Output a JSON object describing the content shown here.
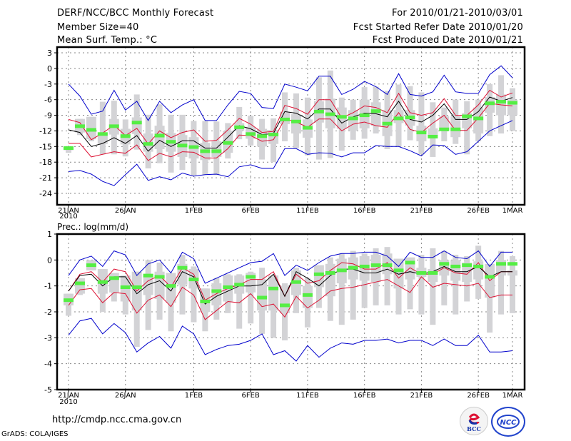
{
  "header": {
    "title": "DERF/NCC/BCC Monthly Forecast",
    "member_size": "Member Size=40",
    "variable": "Mean Surf. Temp.: °C",
    "period": "For 2010/01/21-2010/03/01",
    "started": "Fcst Started Refer Date 2010/01/20",
    "produced": "Fcst Produced Date 2010/01/21"
  },
  "footer": {
    "url": "http://cmdp.ncc.cma.gov.cn",
    "credit": "GrADS: COLA/IGES",
    "logo_left": "BCC",
    "logo_right": "NCC"
  },
  "colors": {
    "max_min": "#0000cc",
    "spread": "#dd1133",
    "mean": "#000000",
    "member_median": "#55ee44",
    "box": "#d3d3d6",
    "grid": "#888888"
  },
  "chart_data": [
    {
      "type": "line",
      "title": "Mean Surf. Temp.: °C",
      "xlabel": "",
      "ylabel": "°C",
      "ylim": [
        -26,
        4
      ],
      "yticks": [
        3,
        0,
        -3,
        -6,
        -9,
        -12,
        -15,
        -18,
        -21,
        -24
      ],
      "xtick_labels": [
        "21JAN",
        "26JAN",
        "1FEB",
        "6FEB",
        "11FEB",
        "16FEB",
        "21FEB",
        "26FEB",
        "1MAR"
      ],
      "xtick_days": [
        0,
        5,
        11,
        16,
        21,
        26,
        31,
        36,
        39
      ],
      "year_label": "2010",
      "grid": true,
      "series": [
        {
          "name": "max",
          "values": [
            -3,
            -5.3,
            -8.8,
            -8.2,
            -4.2,
            -8,
            -6.3,
            -10,
            -6.3,
            -8.5,
            -7,
            -6,
            -10,
            -10,
            -7,
            -4.4,
            -4.8,
            -7.5,
            -7.7,
            -3,
            -3.6,
            -4.3,
            -1.5,
            -1.5,
            -5,
            -4,
            -2.5,
            -3.5,
            -5,
            -1,
            -5,
            -5.3,
            -4.5,
            -1.3,
            -4.5,
            -4.8,
            -4.8,
            -1.2,
            0.5,
            -1.8
          ]
        },
        {
          "name": "upper",
          "values": [
            -9.8,
            -10.4,
            -13.7,
            -12.4,
            -10.9,
            -12.9,
            -11.5,
            -14.5,
            -12,
            -13.3,
            -12.3,
            -11.8,
            -14,
            -13.8,
            -11.8,
            -9.6,
            -10.7,
            -12.3,
            -12.1,
            -7.1,
            -7.7,
            -8.8,
            -6,
            -6,
            -9.5,
            -8.5,
            -7.2,
            -7.5,
            -8.5,
            -4.8,
            -8.5,
            -9,
            -8.5,
            -5.8,
            -9,
            -9,
            -7,
            -4.2,
            -5.5,
            -4.7
          ]
        },
        {
          "name": "mean",
          "values": [
            -11.8,
            -12.3,
            -15,
            -14.4,
            -13.3,
            -14.4,
            -12.9,
            -15.9,
            -13.8,
            -15,
            -13.9,
            -13.9,
            -15.3,
            -15.3,
            -13.2,
            -11,
            -11.6,
            -12.7,
            -12.5,
            -8.3,
            -8.6,
            -9.7,
            -7.8,
            -7.8,
            -10.5,
            -9.3,
            -8.6,
            -8.7,
            -9.3,
            -6.3,
            -9.8,
            -10.3,
            -9,
            -6.8,
            -9.8,
            -9.8,
            -8.3,
            -5.5,
            -6.3,
            -5.6
          ]
        },
        {
          "name": "lower",
          "values": [
            -14.4,
            -14.4,
            -17,
            -16.5,
            -16,
            -16.3,
            -14.7,
            -17.7,
            -16.3,
            -17,
            -16,
            -16.1,
            -17.2,
            -17.2,
            -15.4,
            -12.8,
            -12.9,
            -14,
            -13.7,
            -9.7,
            -10.3,
            -11.3,
            -9.7,
            -9.7,
            -12,
            -10.7,
            -10.3,
            -11,
            -11.3,
            -8.5,
            -11.7,
            -12.3,
            -10.5,
            -9,
            -11.9,
            -11.9,
            -9.5,
            -6.7,
            -7,
            -7.2
          ]
        },
        {
          "name": "min",
          "values": [
            -19.8,
            -19.6,
            -20.3,
            -21.7,
            -22.5,
            -20.4,
            -18.4,
            -21.5,
            -20.8,
            -21.4,
            -20.1,
            -20.7,
            -20.4,
            -20.3,
            -20.8,
            -18.9,
            -18.5,
            -19.2,
            -19.2,
            -15.4,
            -15.4,
            -16.5,
            -16.2,
            -16.3,
            -17,
            -16.2,
            -16.2,
            -14.8,
            -15,
            -15,
            -15.8,
            -16.8,
            -14.7,
            -14.8,
            -16.5,
            -16,
            -14,
            -12,
            -11,
            -10
          ]
        },
        {
          "name": "member_median",
          "values": [
            -15.3,
            -11.1,
            -11.8,
            -12.6,
            -11.1,
            -13,
            -10.4,
            -14.5,
            -12.9,
            -14.1,
            -14.8,
            -15.1,
            -15.9,
            -15.9,
            -14.3,
            -11.3,
            -12.6,
            -13,
            -12.7,
            -9.8,
            -10.2,
            -11.4,
            -8.3,
            -8.8,
            -9.3,
            -9.6,
            -9,
            -8.2,
            -10.6,
            -9.6,
            -9.4,
            -12.3,
            -13.1,
            -11.7,
            -11.7,
            -9.2,
            -9.6,
            -6.7,
            -6.4,
            -6.6
          ]
        },
        {
          "name": "box_q1",
          "values": [
            -15.7,
            -12.3,
            -13.6,
            -14.5,
            -12.7,
            -14.6,
            -12.6,
            -16,
            -15.5,
            -16,
            -17,
            -17.3,
            -17.6,
            -17,
            -16.2,
            -12,
            -13.5,
            -15,
            -14.5,
            -10.7,
            -12.5,
            -13.3,
            -10.4,
            -11.5,
            -11.6,
            -12,
            -11.5,
            -11,
            -13,
            -10.5,
            -11,
            -14,
            -13,
            -11.8,
            -13.2,
            -11.5,
            -12.5,
            -8.5,
            -9,
            -9
          ]
        },
        {
          "name": "box_q3",
          "values": [
            -15,
            -9.7,
            -9.3,
            -12.5,
            -9.7,
            -11.6,
            -9.4,
            -12.5,
            -11,
            -12.4,
            -12.8,
            -13.2,
            -14.3,
            -14,
            -12,
            -10.5,
            -11.2,
            -11.6,
            -11.8,
            -8.3,
            -8.8,
            -9.8,
            -6.3,
            -5.8,
            -7.5,
            -8,
            -6,
            -6.5,
            -8,
            -8,
            -8,
            -11,
            -11.5,
            -9.2,
            -9.2,
            -8.6,
            -7.5,
            -5.5,
            -5,
            -6
          ]
        },
        {
          "name": "box_min",
          "values": [
            -16.2,
            -12.8,
            -14,
            -16.5,
            -16.5,
            -16.9,
            -15.6,
            -19.2,
            -18.2,
            -20,
            -19.5,
            -20.5,
            -20.4,
            -20.5,
            -17.3,
            -13.6,
            -14.8,
            -17.5,
            -18,
            -14,
            -15.3,
            -16.7,
            -17.5,
            -17.2,
            -15.8,
            -13.7,
            -13.5,
            -12.5,
            -15.5,
            -15,
            -13.8,
            -16.5,
            -17,
            -14,
            -14.5,
            -16.5,
            -14,
            -13,
            -12.5,
            -12
          ]
        },
        {
          "name": "box_max",
          "values": [
            -15,
            -9.7,
            -9.3,
            -6.4,
            -6.2,
            -9.8,
            -5,
            -8.9,
            -6.9,
            -8.9,
            -8.9,
            -10.1,
            -10.1,
            -10.2,
            -10.5,
            -7.4,
            -9.1,
            -9.7,
            -9.6,
            -4.6,
            -4.8,
            -5.6,
            -1.7,
            -0.4,
            -5.6,
            -6,
            -3.6,
            -3.5,
            -4.3,
            -3.1,
            -3.4,
            -4.6,
            -6.5,
            -7.5,
            -6,
            -6.3,
            -6,
            -3,
            -1.3,
            -3.8
          ]
        }
      ]
    },
    {
      "type": "line",
      "title": "Prec.: log(mm/d)",
      "xlabel": "",
      "ylabel": "log(mm/d)",
      "ylim": [
        -5,
        1
      ],
      "yticks": [
        1,
        0,
        -1,
        -2,
        -3,
        -4,
        -5
      ],
      "xtick_labels": [
        "21JAN",
        "26JAN",
        "1FEB",
        "6FEB",
        "11FEB",
        "16FEB",
        "21FEB",
        "26FEB",
        "1MAR"
      ],
      "xtick_days": [
        0,
        5,
        11,
        16,
        21,
        26,
        31,
        36,
        39
      ],
      "year_label": "2010",
      "grid": true,
      "series": [
        {
          "name": "max",
          "values": [
            -0.6,
            0,
            0.15,
            -0.25,
            0.35,
            0.2,
            -0.6,
            -0.15,
            0,
            -0.5,
            0.3,
            0.05,
            -0.9,
            -0.7,
            -0.5,
            -0.3,
            -0.1,
            -0.05,
            0.25,
            -0.6,
            -0.2,
            -0.4,
            -0.1,
            0.15,
            0.25,
            0.25,
            0.3,
            0.3,
            0.15,
            -0.25,
            0.3,
            0.1,
            0.1,
            0.35,
            0.1,
            0.05,
            0.35,
            -0.25,
            0.3,
            0.3
          ]
        },
        {
          "name": "upper",
          "values": [
            -1.2,
            -0.55,
            -0.45,
            -0.85,
            -0.35,
            -0.45,
            -1.2,
            -0.8,
            -0.6,
            -1.05,
            -0.3,
            -0.55,
            -1.55,
            -1.3,
            -1.1,
            -0.95,
            -0.75,
            -0.75,
            -0.45,
            -1.4,
            -0.55,
            -0.9,
            -0.8,
            -0.4,
            -0.1,
            -0.15,
            -0.35,
            -0.35,
            -0.1,
            -0.7,
            -0.3,
            -0.55,
            -0.55,
            -0.3,
            -0.5,
            -0.55,
            -0.1,
            -0.8,
            -0.45,
            -0.45
          ]
        },
        {
          "name": "mean",
          "values": [
            -1.2,
            -0.6,
            -0.55,
            -1,
            -0.65,
            -0.65,
            -1.3,
            -0.95,
            -0.8,
            -1.2,
            -0.45,
            -0.65,
            -1.7,
            -1.4,
            -1.2,
            -1,
            -1,
            -0.95,
            -0.55,
            -1.4,
            -0.45,
            -0.7,
            -1,
            -0.6,
            -0.35,
            -0.35,
            -0.5,
            -0.5,
            -0.35,
            -0.55,
            -0.45,
            -0.55,
            -0.45,
            -0.25,
            -0.45,
            -0.45,
            -0.25,
            -0.65,
            -0.45,
            -0.45
          ]
        },
        {
          "name": "lower",
          "values": [
            -1.75,
            -1.15,
            -1.1,
            -1.65,
            -1.25,
            -1.3,
            -2.05,
            -1.55,
            -1.35,
            -1.8,
            -1.05,
            -1.35,
            -2.3,
            -1.95,
            -1.6,
            -1.65,
            -1.3,
            -1.8,
            -1.7,
            -2.2,
            -1.4,
            -1.85,
            -1.55,
            -1.2,
            -1.1,
            -1.05,
            -0.95,
            -0.85,
            -0.75,
            -1,
            -1.25,
            -0.65,
            -1.05,
            -0.9,
            -0.95,
            -1,
            -0.9,
            -1.45,
            -1.35,
            -1.35
          ]
        },
        {
          "name": "min",
          "values": [
            -2.9,
            -2.35,
            -2.25,
            -2.85,
            -2.45,
            -2.8,
            -3.55,
            -3.2,
            -2.95,
            -3.4,
            -2.55,
            -2.85,
            -3.65,
            -3.45,
            -3.3,
            -3.25,
            -3.1,
            -2.85,
            -3.65,
            -3.5,
            -3.9,
            -3.3,
            -3.75,
            -3.4,
            -3.2,
            -3.25,
            -3.1,
            -3.1,
            -3.05,
            -3.2,
            -3.1,
            -3.1,
            -3.3,
            -3.05,
            -3.3,
            -3.3,
            -2.9,
            -3.55,
            -3.55,
            -3.5
          ]
        },
        {
          "name": "member_median",
          "values": [
            -1.55,
            -0.9,
            -0.2,
            -0.85,
            -0.7,
            -1.05,
            -1.05,
            -0.6,
            -0.65,
            -1,
            -0.3,
            -0.75,
            -1.6,
            -1.2,
            -1.05,
            -0.95,
            -0.65,
            -1.45,
            -1.1,
            -1.75,
            -0.85,
            -1.35,
            -0.55,
            -0.5,
            -0.4,
            -0.3,
            -0.25,
            -0.2,
            -0.2,
            -0.4,
            -0.1,
            -0.5,
            -0.5,
            -0.15,
            -0.25,
            -0.2,
            -0.25,
            -0.65,
            -0.15,
            -0.15
          ]
        },
        {
          "name": "box_q1",
          "values": [
            -1.75,
            -1.3,
            -0.4,
            -1.3,
            -1.25,
            -1.6,
            -1.95,
            -1.35,
            -1.5,
            -1.65,
            -0.95,
            -1.1,
            -2,
            -1.75,
            -1.6,
            -1.3,
            -1.25,
            -1.95,
            -1.95,
            -2.05,
            -1.35,
            -1.85,
            -1.05,
            -1.4,
            -0.9,
            -0.75,
            -0.8,
            -0.85,
            -0.55,
            -1.1,
            -0.75,
            -0.65,
            -0.85,
            -0.6,
            -0.8,
            -0.85,
            -0.75,
            -1.45,
            -0.6,
            -0.6
          ]
        },
        {
          "name": "box_q3",
          "values": [
            -1.3,
            -0.7,
            0,
            -0.35,
            -0.5,
            -0.6,
            -0.45,
            -0.55,
            -0.45,
            -0.5,
            -0.15,
            -0.35,
            -1.1,
            -0.9,
            -0.6,
            -0.6,
            -0.5,
            -0.75,
            -0.6,
            -1,
            -0.4,
            -1,
            -0.2,
            -0.15,
            0.05,
            0.1,
            0.15,
            0.2,
            0.25,
            0.05,
            0.1,
            -0.3,
            -0.35,
            0,
            0,
            -0.1,
            -0.05,
            -0.15,
            0,
            -0.4
          ]
        },
        {
          "name": "box_min",
          "values": [
            -2.15,
            -1.35,
            -0.4,
            -2,
            -1.6,
            -2.1,
            -3.35,
            -2.7,
            -2.3,
            -2.75,
            -2.1,
            -2.4,
            -2.75,
            -2.3,
            -2.05,
            -2.65,
            -2.45,
            -2.85,
            -3,
            -3.1,
            -2.05,
            -2.6,
            -1.85,
            -2.35,
            -2.5,
            -2.3,
            -1.85,
            -1.75,
            -1.75,
            -2.1,
            -1.9,
            -2.1,
            -2.5,
            -1.75,
            -2.1,
            -1.6,
            -1.5,
            -2.8,
            -2.1,
            -2.05
          ]
        },
        {
          "name": "box_max",
          "values": [
            -1.3,
            -0.7,
            -0.1,
            -0.35,
            -0.5,
            -0.6,
            -0.45,
            0,
            -0.1,
            -0.5,
            0.2,
            -0.25,
            -1.1,
            -0.7,
            -0.55,
            -0.55,
            -0.45,
            -0.3,
            -0.6,
            -0.9,
            -0.3,
            -0.7,
            -0.3,
            0.1,
            0.25,
            0.35,
            0.25,
            0.45,
            0.5,
            -0.1,
            0.05,
            0.2,
            0.45,
            0.35,
            0.2,
            0.15,
            0.55,
            -0.15,
            0.35,
            0.15
          ]
        }
      ]
    }
  ]
}
